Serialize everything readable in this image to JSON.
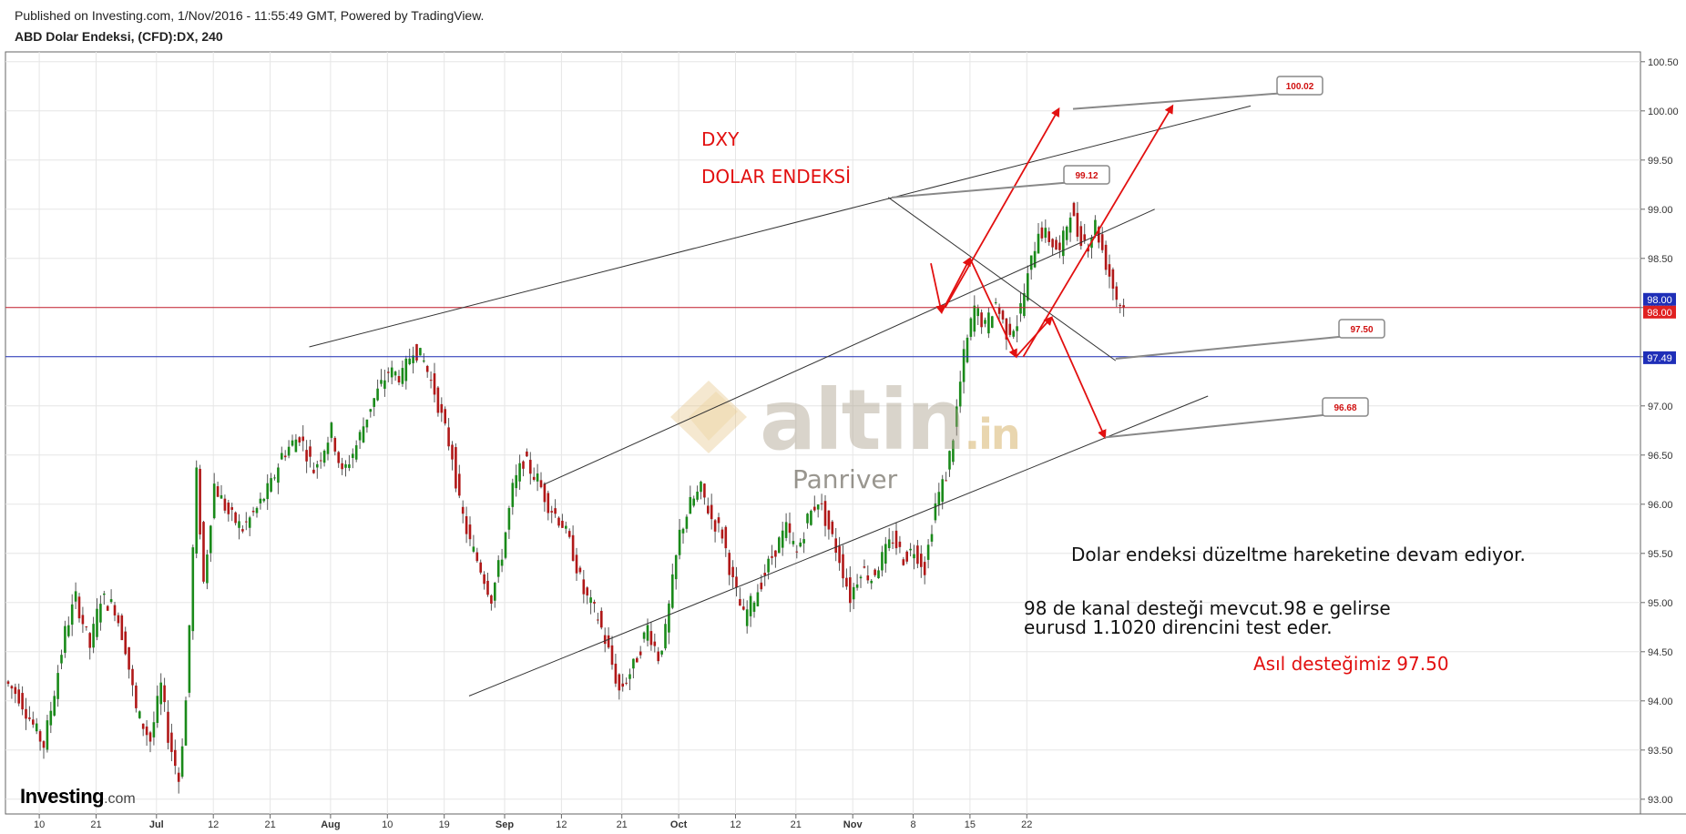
{
  "header": {
    "published": "Published on Investing.com, 1/Nov/2016 - 11:55:49 GMT, Powered by TradingView.",
    "symbol": "ABD Dolar Endeksi, (CFD):DX, 240"
  },
  "annotations": {
    "title1": "DXY",
    "title2": "DOLAR ENDEKSİ",
    "text1": "Dolar endeksi düzeltme hareketine devam ediyor.",
    "text2a": "98 de kanal desteği mevcut.98 e gelirse",
    "text2b": "eurusd 1.1020 direncini test eder.",
    "text3": "Asıl desteğimiz 97.50"
  },
  "watermark": {
    "brand": "altin",
    "suffix": ".in",
    "sub": "Panriver"
  },
  "logo": {
    "bold": "Investing",
    "suffix": ".com"
  },
  "colors": {
    "up": "#1a8a1a",
    "down": "#b01818",
    "annotation": "#e21010",
    "support_line": "#1f2fb8",
    "resistance_line": "#c4202e",
    "trendline": "#333333"
  },
  "chart_data": {
    "type": "candlestick",
    "title": "ABD Dolar Endeksi, (CFD):DX, 240",
    "ylim": [
      92.85,
      100.6
    ],
    "y_ticks": [
      "100.50",
      "100.00",
      "99.50",
      "99.00",
      "98.50",
      "98.00",
      "97.50",
      "97.00",
      "96.50",
      "96.00",
      "95.50",
      "95.00",
      "94.50",
      "94.00",
      "93.50",
      "93.00"
    ],
    "x_ticks": [
      "10",
      "21",
      "Jul",
      "12",
      "21",
      "Aug",
      "10",
      "19",
      "Sep",
      "12",
      "21",
      "Oct",
      "12",
      "21",
      "Nov",
      "8",
      "15",
      "22"
    ],
    "price_badges": [
      {
        "label": "98.00",
        "color": "#1f2fb8"
      },
      {
        "label": "98.00",
        "color": "#e02020"
      },
      {
        "label": "97.49",
        "color": "#1f2fb8"
      }
    ],
    "horizontal_levels": [
      {
        "value": 98.0,
        "color": "#c4202e"
      },
      {
        "value": 97.5,
        "color": "#1f2fb8"
      }
    ],
    "callouts": [
      "99.12",
      "100.02",
      "97.50",
      "96.68"
    ],
    "series": [
      {
        "path": [
          [
            0,
            94.2
          ],
          [
            4,
            94.05
          ],
          [
            8,
            93.75
          ],
          [
            11,
            93.55
          ],
          [
            14,
            94.1
          ],
          [
            17,
            94.7
          ],
          [
            20,
            95.05
          ],
          [
            24,
            94.55
          ],
          [
            27,
            95.05
          ],
          [
            31,
            94.95
          ],
          [
            34,
            94.55
          ],
          [
            37,
            93.9
          ],
          [
            41,
            93.6
          ],
          [
            44,
            94.15
          ],
          [
            46,
            93.65
          ],
          [
            49,
            93.2
          ],
          [
            51,
            94.0
          ],
          [
            54,
            96.3
          ],
          [
            56,
            95.2
          ],
          [
            59,
            96.2
          ],
          [
            63,
            95.9
          ],
          [
            67,
            95.75
          ],
          [
            71,
            95.95
          ],
          [
            75,
            96.2
          ],
          [
            78,
            96.5
          ],
          [
            83,
            96.7
          ],
          [
            87,
            96.35
          ],
          [
            92,
            96.75
          ],
          [
            95,
            96.3
          ],
          [
            99,
            96.6
          ],
          [
            103,
            97.0
          ],
          [
            108,
            97.35
          ],
          [
            112,
            97.3
          ],
          [
            115,
            97.6
          ],
          [
            118,
            97.45
          ],
          [
            121,
            97.15
          ],
          [
            124,
            96.75
          ],
          [
            126,
            96.5
          ],
          [
            128,
            96.0
          ],
          [
            131,
            95.6
          ],
          [
            134,
            95.35
          ],
          [
            137,
            95.05
          ],
          [
            140,
            95.5
          ],
          [
            143,
            96.15
          ],
          [
            146,
            96.45
          ],
          [
            150,
            96.25
          ],
          [
            153,
            96.0
          ],
          [
            157,
            95.8
          ],
          [
            160,
            95.5
          ],
          [
            163,
            95.1
          ],
          [
            167,
            94.85
          ],
          [
            170,
            94.5
          ],
          [
            173,
            94.1
          ],
          [
            177,
            94.35
          ],
          [
            181,
            94.75
          ],
          [
            184,
            94.45
          ],
          [
            186,
            94.7
          ],
          [
            190,
            95.7
          ],
          [
            193,
            96.0
          ],
          [
            196,
            96.15
          ],
          [
            199,
            95.85
          ],
          [
            202,
            95.7
          ],
          [
            205,
            95.2
          ],
          [
            208,
            94.85
          ],
          [
            211,
            95.05
          ],
          [
            214,
            95.3
          ],
          [
            217,
            95.55
          ],
          [
            220,
            95.75
          ],
          [
            223,
            95.5
          ],
          [
            226,
            95.85
          ],
          [
            229,
            96.05
          ],
          [
            232,
            95.75
          ],
          [
            235,
            95.45
          ],
          [
            238,
            95.05
          ],
          [
            241,
            95.35
          ],
          [
            244,
            95.25
          ],
          [
            247,
            95.45
          ],
          [
            250,
            95.65
          ],
          [
            253,
            95.45
          ],
          [
            256,
            95.55
          ],
          [
            259,
            95.35
          ],
          [
            262,
            96.0
          ],
          [
            265,
            96.3
          ],
          [
            267,
            96.7
          ],
          [
            270,
            97.5
          ],
          [
            273,
            98.0
          ],
          [
            276,
            97.8
          ],
          [
            279,
            98.05
          ],
          [
            282,
            97.75
          ],
          [
            285,
            97.85
          ],
          [
            288,
            98.3
          ],
          [
            291,
            98.8
          ],
          [
            294,
            98.7
          ],
          [
            297,
            98.55
          ],
          [
            300,
            99.0
          ],
          [
            302,
            98.75
          ],
          [
            305,
            98.65
          ],
          [
            307,
            98.85
          ],
          [
            310,
            98.45
          ],
          [
            313,
            98.1
          ],
          [
            315,
            98.0
          ]
        ]
      }
    ]
  }
}
